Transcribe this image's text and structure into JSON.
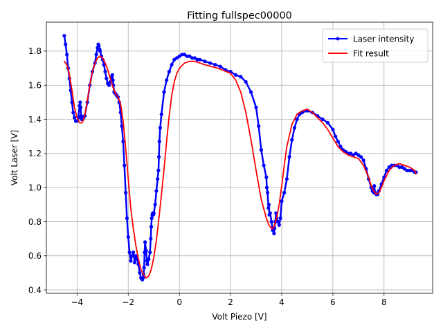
{
  "chart_data": {
    "type": "line",
    "title": "Fitting fullspec00000",
    "xlabel": "Volt Piezo [V]",
    "ylabel": "Volt Laser [V]",
    "xlim": [
      -5.2,
      9.9
    ],
    "ylim": [
      0.38,
      1.97
    ],
    "xticks": [
      -4,
      -2,
      0,
      2,
      4,
      6,
      8
    ],
    "yticks": [
      0.4,
      0.6,
      0.8,
      1.0,
      1.2,
      1.4,
      1.6,
      1.8
    ],
    "xtick_labels": [
      "−4",
      "−2",
      "0",
      "2",
      "4",
      "6",
      "8"
    ],
    "ytick_labels": [
      "0.4",
      "0.6",
      "0.8",
      "1.0",
      "1.2",
      "1.4",
      "1.6",
      "1.8"
    ],
    "grid": true,
    "legend_position": "upper right",
    "series": [
      {
        "name": "Laser intensity",
        "color": "#0000ff",
        "marker": "dot",
        "x": [
          -4.5,
          -4.45,
          -4.4,
          -4.35,
          -4.3,
          -4.25,
          -4.2,
          -4.15,
          -4.1,
          -4.05,
          -4.0,
          -3.95,
          -3.9,
          -3.88,
          -3.86,
          -3.84,
          -3.82,
          -3.8,
          -3.78,
          -3.75,
          -3.7,
          -3.6,
          -3.5,
          -3.4,
          -3.3,
          -3.25,
          -3.2,
          -3.17,
          -3.15,
          -3.12,
          -3.1,
          -3.05,
          -3.0,
          -2.95,
          -2.9,
          -2.85,
          -2.8,
          -2.75,
          -2.7,
          -2.65,
          -2.62,
          -2.6,
          -2.58,
          -2.55,
          -2.5,
          -2.45,
          -2.4,
          -2.35,
          -2.3,
          -2.25,
          -2.2,
          -2.15,
          -2.1,
          -2.05,
          -2.0,
          -1.95,
          -1.9,
          -1.85,
          -1.8,
          -1.75,
          -1.7,
          -1.65,
          -1.6,
          -1.55,
          -1.5,
          -1.45,
          -1.42,
          -1.4,
          -1.38,
          -1.36,
          -1.34,
          -1.3,
          -1.27,
          -1.25,
          -1.2,
          -1.15,
          -1.12,
          -1.1,
          -1.08,
          -1.06,
          -1.04,
          -1.02,
          -1.0,
          -0.95,
          -0.9,
          -0.85,
          -0.82,
          -0.8,
          -0.78,
          -0.75,
          -0.7,
          -0.6,
          -0.5,
          -0.4,
          -0.3,
          -0.2,
          -0.1,
          0.0,
          0.1,
          0.2,
          0.3,
          0.4,
          0.5,
          0.6,
          0.7,
          0.8,
          1.0,
          1.2,
          1.4,
          1.6,
          1.8,
          2.0,
          2.2,
          2.4,
          2.6,
          2.8,
          3.0,
          3.1,
          3.2,
          3.3,
          3.4,
          3.42,
          3.45,
          3.48,
          3.5,
          3.52,
          3.55,
          3.6,
          3.65,
          3.7,
          3.72,
          3.75,
          3.78,
          3.8,
          3.85,
          3.9,
          3.95,
          4.0,
          4.1,
          4.2,
          4.3,
          4.4,
          4.5,
          4.6,
          4.7,
          4.8,
          5.0,
          5.2,
          5.4,
          5.6,
          5.8,
          6.0,
          6.1,
          6.2,
          6.3,
          6.4,
          6.5,
          6.6,
          6.7,
          6.8,
          6.9,
          7.0,
          7.1,
          7.2,
          7.3,
          7.4,
          7.5,
          7.55,
          7.6,
          7.62,
          7.65,
          7.7,
          7.75,
          7.8,
          7.9,
          8.0,
          8.1,
          8.2,
          8.3,
          8.4,
          8.5,
          8.6,
          8.7,
          8.8,
          8.9,
          9.0,
          9.1,
          9.2,
          9.25
        ],
        "y": [
          1.89,
          1.84,
          1.78,
          1.7,
          1.64,
          1.57,
          1.5,
          1.44,
          1.41,
          1.39,
          1.39,
          1.41,
          1.48,
          1.5,
          1.47,
          1.42,
          1.4,
          1.41,
          1.4,
          1.41,
          1.42,
          1.5,
          1.6,
          1.68,
          1.73,
          1.78,
          1.82,
          1.84,
          1.83,
          1.81,
          1.8,
          1.77,
          1.75,
          1.72,
          1.68,
          1.64,
          1.61,
          1.6,
          1.62,
          1.65,
          1.66,
          1.63,
          1.6,
          1.56,
          1.55,
          1.54,
          1.53,
          1.5,
          1.44,
          1.36,
          1.27,
          1.13,
          0.97,
          0.82,
          0.71,
          0.62,
          0.57,
          0.6,
          0.62,
          0.56,
          0.6,
          0.58,
          0.55,
          0.5,
          0.47,
          0.46,
          0.47,
          0.49,
          0.53,
          0.62,
          0.68,
          0.63,
          0.57,
          0.55,
          0.58,
          0.62,
          0.7,
          0.77,
          0.82,
          0.84,
          0.85,
          0.84,
          0.85,
          0.9,
          0.98,
          1.05,
          1.1,
          1.18,
          1.27,
          1.35,
          1.43,
          1.56,
          1.63,
          1.68,
          1.72,
          1.75,
          1.76,
          1.77,
          1.78,
          1.78,
          1.77,
          1.77,
          1.76,
          1.76,
          1.75,
          1.75,
          1.74,
          1.73,
          1.72,
          1.71,
          1.69,
          1.68,
          1.66,
          1.65,
          1.62,
          1.56,
          1.47,
          1.36,
          1.22,
          1.13,
          1.06,
          1.0,
          0.97,
          0.88,
          0.9,
          0.84,
          0.85,
          0.8,
          0.75,
          0.73,
          0.76,
          0.8,
          0.85,
          0.82,
          0.8,
          0.78,
          0.82,
          0.92,
          0.97,
          1.05,
          1.18,
          1.28,
          1.35,
          1.4,
          1.43,
          1.44,
          1.45,
          1.44,
          1.42,
          1.4,
          1.38,
          1.34,
          1.3,
          1.27,
          1.24,
          1.22,
          1.21,
          1.2,
          1.2,
          1.19,
          1.2,
          1.19,
          1.18,
          1.16,
          1.11,
          1.05,
          1.0,
          0.98,
          0.97,
          1.01,
          0.97,
          0.96,
          0.96,
          0.98,
          1.02,
          1.06,
          1.1,
          1.12,
          1.13,
          1.13,
          1.13,
          1.12,
          1.12,
          1.11,
          1.1,
          1.1,
          1.1,
          1.09,
          1.09
        ]
      },
      {
        "name": "Fit result",
        "color": "#ff0000",
        "marker": "none",
        "x": [
          -4.5,
          -4.4,
          -4.3,
          -4.2,
          -4.1,
          -4.0,
          -3.9,
          -3.8,
          -3.7,
          -3.6,
          -3.5,
          -3.4,
          -3.3,
          -3.2,
          -3.1,
          -3.0,
          -2.9,
          -2.8,
          -2.7,
          -2.6,
          -2.5,
          -2.4,
          -2.3,
          -2.2,
          -2.1,
          -2.0,
          -1.9,
          -1.8,
          -1.7,
          -1.6,
          -1.5,
          -1.4,
          -1.3,
          -1.2,
          -1.1,
          -1.0,
          -0.9,
          -0.8,
          -0.7,
          -0.6,
          -0.5,
          -0.4,
          -0.3,
          -0.2,
          -0.1,
          0.0,
          0.2,
          0.4,
          0.6,
          0.8,
          1.0,
          1.5,
          2.0,
          2.2,
          2.4,
          2.6,
          2.8,
          3.0,
          3.2,
          3.4,
          3.5,
          3.6,
          3.65,
          3.7,
          3.8,
          3.9,
          4.0,
          4.1,
          4.2,
          4.4,
          4.6,
          4.8,
          5.0,
          5.2,
          5.4,
          5.6,
          5.8,
          6.0,
          6.2,
          6.4,
          6.6,
          6.8,
          7.0,
          7.2,
          7.4,
          7.5,
          7.6,
          7.7,
          7.8,
          7.9,
          8.0,
          8.2,
          8.4,
          8.6,
          8.8,
          9.0,
          9.2,
          9.25
        ],
        "y": [
          1.74,
          1.72,
          1.66,
          1.57,
          1.47,
          1.41,
          1.38,
          1.38,
          1.42,
          1.51,
          1.6,
          1.68,
          1.73,
          1.76,
          1.77,
          1.76,
          1.73,
          1.69,
          1.64,
          1.59,
          1.55,
          1.53,
          1.49,
          1.39,
          1.23,
          1.05,
          0.88,
          0.76,
          0.66,
          0.58,
          0.52,
          0.49,
          0.47,
          0.48,
          0.52,
          0.59,
          0.69,
          0.82,
          0.96,
          1.11,
          1.27,
          1.42,
          1.54,
          1.62,
          1.67,
          1.7,
          1.73,
          1.74,
          1.74,
          1.73,
          1.72,
          1.7,
          1.67,
          1.63,
          1.56,
          1.44,
          1.28,
          1.1,
          0.93,
          0.82,
          0.78,
          0.76,
          0.76,
          0.77,
          0.82,
          0.9,
          1.01,
          1.13,
          1.24,
          1.37,
          1.43,
          1.45,
          1.46,
          1.44,
          1.41,
          1.38,
          1.34,
          1.29,
          1.24,
          1.21,
          1.19,
          1.18,
          1.17,
          1.13,
          1.06,
          1.01,
          0.98,
          0.96,
          0.97,
          1.0,
          1.04,
          1.1,
          1.13,
          1.14,
          1.13,
          1.12,
          1.1,
          1.08
        ]
      }
    ]
  }
}
